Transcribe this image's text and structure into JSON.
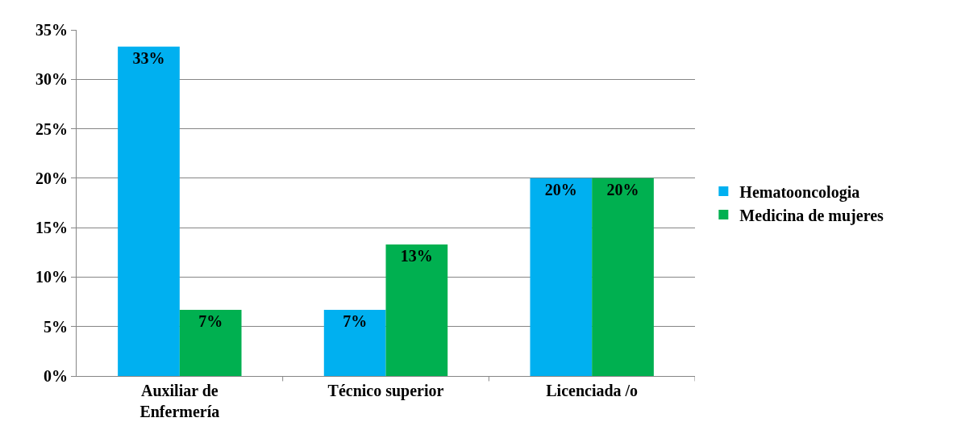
{
  "chart_data": {
    "type": "bar",
    "categories": [
      "Auxiliar de Enfermería",
      "Técnico superior",
      "Licenciada /o"
    ],
    "series": [
      {
        "name": "Hematooncologia",
        "color": "#00b0f0",
        "values": [
          33.3,
          6.7,
          20
        ],
        "value_labels": [
          "33%",
          "7%",
          "20%"
        ]
      },
      {
        "name": "Medicina de mujeres",
        "color": "#00b050",
        "values": [
          6.7,
          13.3,
          20
        ],
        "value_labels": [
          "7%",
          "13%",
          "20%"
        ]
      }
    ],
    "ylim": [
      0,
      35
    ],
    "yticks": [
      {
        "value": 0,
        "label": "0%"
      },
      {
        "value": 5,
        "label": "5%"
      },
      {
        "value": 10,
        "label": "10%"
      },
      {
        "value": 15,
        "label": "15%"
      },
      {
        "value": 20,
        "label": "20%"
      },
      {
        "value": 25,
        "label": "25%"
      },
      {
        "value": 30,
        "label": "30%"
      },
      {
        "value": 35,
        "label": "35%"
      }
    ],
    "grid": "y",
    "legend": "right"
  }
}
